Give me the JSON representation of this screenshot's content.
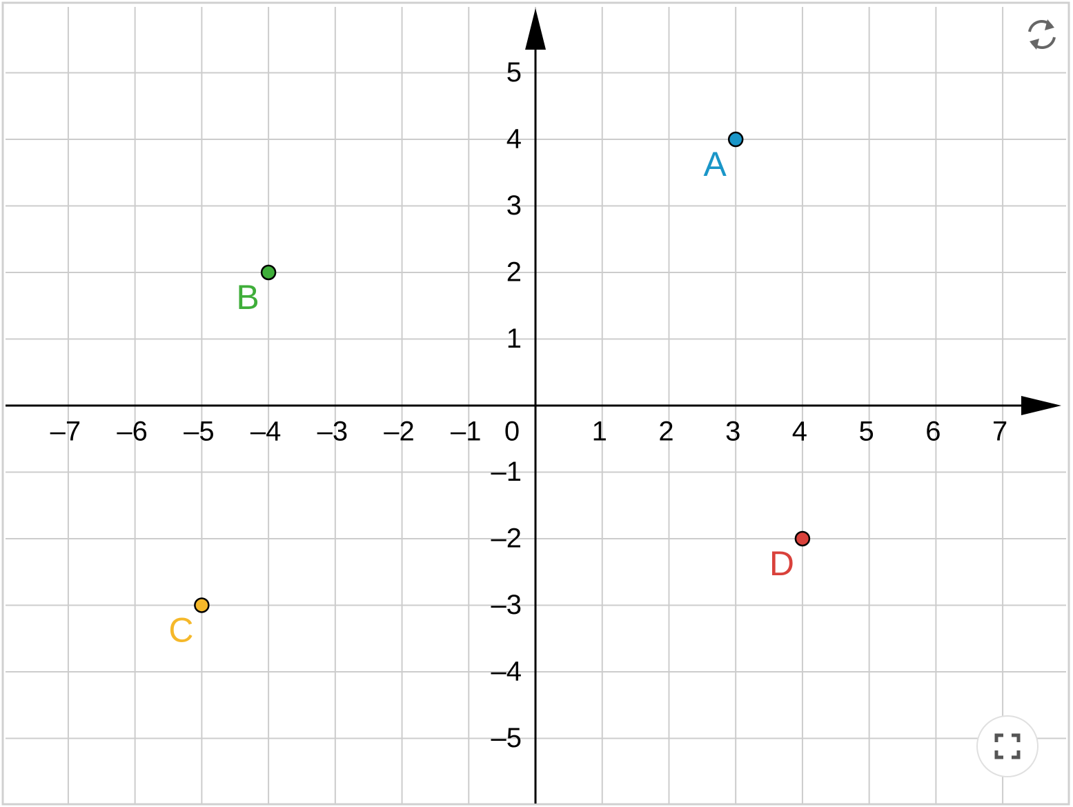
{
  "chart_data": {
    "type": "scatter",
    "series": [
      {
        "name": "A",
        "color": "#1a96c8",
        "x": [
          3
        ],
        "values": [
          4
        ]
      },
      {
        "name": "B",
        "color": "#3fae3a",
        "x": [
          -4
        ],
        "values": [
          2
        ]
      },
      {
        "name": "C",
        "color": "#f5b82a",
        "x": [
          -5
        ],
        "values": [
          -3
        ]
      },
      {
        "name": "D",
        "color": "#d9413b",
        "x": [
          4
        ],
        "values": [
          -2
        ]
      }
    ],
    "xlim": [
      -7.94,
      7.95
    ],
    "ylim": [
      -5.98,
      5.99
    ],
    "xticks": [
      {
        "value": -7,
        "label": "–7"
      },
      {
        "value": -6,
        "label": "–6"
      },
      {
        "value": -5,
        "label": "–5"
      },
      {
        "value": -4,
        "label": "–4"
      },
      {
        "value": -3,
        "label": "–3"
      },
      {
        "value": -2,
        "label": "–2"
      },
      {
        "value": -1,
        "label": "–1"
      },
      0,
      1,
      2,
      3,
      4,
      5,
      6,
      7
    ],
    "yticks": [
      {
        "value": -5,
        "label": "–5"
      },
      {
        "value": -4,
        "label": "–4"
      },
      {
        "value": -3,
        "label": "–3"
      },
      {
        "value": -2,
        "label": "–2"
      },
      {
        "value": -1,
        "label": "–1"
      },
      1,
      2,
      3,
      4,
      5
    ],
    "grid": true
  }
}
